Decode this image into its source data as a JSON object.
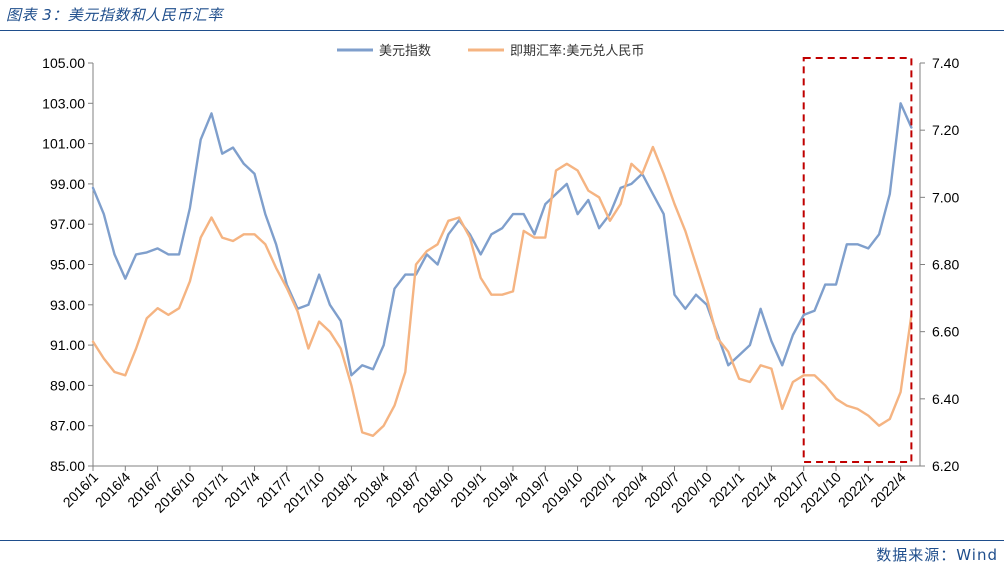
{
  "header": {
    "title": "图表 3：美元指数和人民币汇率"
  },
  "footer": {
    "source": "数据来源：Wind"
  },
  "chart_data": {
    "type": "line",
    "legend_position": "top",
    "grid": false,
    "x_tick_labels": [
      "2016/1",
      "2016/4",
      "2016/7",
      "2016/10",
      "2017/1",
      "2017/4",
      "2017/7",
      "2017/10",
      "2018/1",
      "2018/4",
      "2018/7",
      "2018/10",
      "2019/1",
      "2019/4",
      "2019/7",
      "2019/10",
      "2020/1",
      "2020/4",
      "2020/7",
      "2020/10",
      "2021/1",
      "2021/4",
      "2021/7",
      "2021/10",
      "2022/1",
      "2022/4"
    ],
    "y_left": {
      "min": 85,
      "max": 105,
      "step": 2,
      "tick_labels": [
        "85.00",
        "87.00",
        "89.00",
        "91.00",
        "93.00",
        "95.00",
        "97.00",
        "99.00",
        "101.00",
        "103.00",
        "105.00"
      ]
    },
    "y_right": {
      "min": 6.2,
      "max": 7.4,
      "step": 0.2,
      "tick_labels": [
        "6.20",
        "6.40",
        "6.60",
        "6.80",
        "7.00",
        "7.20",
        "7.40"
      ]
    },
    "highlight_box": {
      "x_start": "2021/7",
      "x_end": "2022/5",
      "color": "#c00000",
      "style": "dashed"
    },
    "series": [
      {
        "name": "美元指数",
        "axis": "left",
        "color": "#7f9fcc",
        "x": [
          "2016/1",
          "2016/2",
          "2016/3",
          "2016/4",
          "2016/5",
          "2016/6",
          "2016/7",
          "2016/8",
          "2016/9",
          "2016/10",
          "2016/11",
          "2016/12",
          "2017/1",
          "2017/2",
          "2017/3",
          "2017/4",
          "2017/5",
          "2017/6",
          "2017/7",
          "2017/8",
          "2017/9",
          "2017/10",
          "2017/11",
          "2017/12",
          "2018/1",
          "2018/2",
          "2018/3",
          "2018/4",
          "2018/5",
          "2018/6",
          "2018/7",
          "2018/8",
          "2018/9",
          "2018/10",
          "2018/11",
          "2018/12",
          "2019/1",
          "2019/2",
          "2019/3",
          "2019/4",
          "2019/5",
          "2019/6",
          "2019/7",
          "2019/8",
          "2019/9",
          "2019/10",
          "2019/11",
          "2019/12",
          "2020/1",
          "2020/2",
          "2020/3",
          "2020/4",
          "2020/5",
          "2020/6",
          "2020/7",
          "2020/8",
          "2020/9",
          "2020/10",
          "2020/11",
          "2020/12",
          "2021/1",
          "2021/2",
          "2021/3",
          "2021/4",
          "2021/5",
          "2021/6",
          "2021/7",
          "2021/8",
          "2021/9",
          "2021/10",
          "2021/11",
          "2021/12",
          "2022/1",
          "2022/2",
          "2022/3",
          "2022/4",
          "2022/5"
        ],
        "values": [
          98.8,
          97.5,
          95.5,
          94.3,
          95.5,
          95.6,
          95.8,
          95.5,
          95.5,
          97.8,
          101.2,
          102.5,
          100.5,
          100.8,
          100.0,
          99.5,
          97.5,
          96.0,
          94.0,
          92.8,
          93.0,
          94.5,
          93.0,
          92.2,
          89.5,
          90.0,
          89.8,
          91.0,
          93.8,
          94.5,
          94.5,
          95.5,
          95.0,
          96.5,
          97.2,
          96.5,
          95.5,
          96.5,
          96.8,
          97.5,
          97.5,
          96.5,
          98.0,
          98.5,
          99.0,
          97.5,
          98.2,
          96.8,
          97.5,
          98.8,
          99.0,
          99.5,
          98.5,
          97.5,
          93.5,
          92.8,
          93.5,
          93.0,
          91.5,
          90.0,
          90.5,
          91.0,
          92.8,
          91.2,
          90.0,
          91.5,
          92.5,
          92.7,
          94.0,
          94.0,
          96.0,
          96.0,
          95.8,
          96.5,
          98.5,
          103.0,
          101.8
        ]
      },
      {
        "name": "即期汇率:美元兑人民币",
        "axis": "right",
        "color": "#f5b482",
        "x": [
          "2016/1",
          "2016/2",
          "2016/3",
          "2016/4",
          "2016/5",
          "2016/6",
          "2016/7",
          "2016/8",
          "2016/9",
          "2016/10",
          "2016/11",
          "2016/12",
          "2017/1",
          "2017/2",
          "2017/3",
          "2017/4",
          "2017/5",
          "2017/6",
          "2017/7",
          "2017/8",
          "2017/9",
          "2017/10",
          "2017/11",
          "2017/12",
          "2018/1",
          "2018/2",
          "2018/3",
          "2018/4",
          "2018/5",
          "2018/6",
          "2018/7",
          "2018/8",
          "2018/9",
          "2018/10",
          "2018/11",
          "2018/12",
          "2019/1",
          "2019/2",
          "2019/3",
          "2019/4",
          "2019/5",
          "2019/6",
          "2019/7",
          "2019/8",
          "2019/9",
          "2019/10",
          "2019/11",
          "2019/12",
          "2020/1",
          "2020/2",
          "2020/3",
          "2020/4",
          "2020/5",
          "2020/6",
          "2020/7",
          "2020/8",
          "2020/9",
          "2020/10",
          "2020/11",
          "2020/12",
          "2021/1",
          "2021/2",
          "2021/3",
          "2021/4",
          "2021/5",
          "2021/6",
          "2021/7",
          "2021/8",
          "2021/9",
          "2021/10",
          "2021/11",
          "2021/12",
          "2022/1",
          "2022/2",
          "2022/3",
          "2022/4",
          "2022/5"
        ],
        "values": [
          6.57,
          6.52,
          6.48,
          6.47,
          6.55,
          6.64,
          6.67,
          6.65,
          6.67,
          6.75,
          6.88,
          6.94,
          6.88,
          6.87,
          6.89,
          6.89,
          6.86,
          6.79,
          6.73,
          6.66,
          6.55,
          6.63,
          6.6,
          6.55,
          6.44,
          6.3,
          6.29,
          6.32,
          6.38,
          6.48,
          6.8,
          6.84,
          6.86,
          6.93,
          6.94,
          6.88,
          6.76,
          6.71,
          6.71,
          6.72,
          6.9,
          6.88,
          6.88,
          7.08,
          7.1,
          7.08,
          7.02,
          7.0,
          6.93,
          6.98,
          7.1,
          7.07,
          7.15,
          7.07,
          6.98,
          6.9,
          6.8,
          6.7,
          6.58,
          6.54,
          6.46,
          6.45,
          6.5,
          6.49,
          6.37,
          6.45,
          6.47,
          6.47,
          6.44,
          6.4,
          6.38,
          6.37,
          6.35,
          6.32,
          6.34,
          6.42,
          6.65
        ]
      }
    ]
  }
}
